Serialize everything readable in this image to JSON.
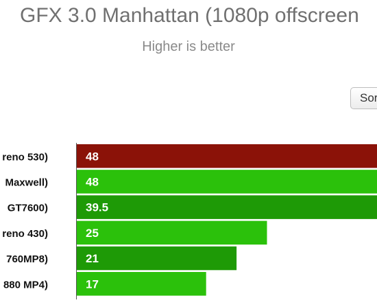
{
  "header": {
    "title": "GFX 3.0 Manhattan (1080p offscreen",
    "subtitle": "Higher is better"
  },
  "controls": {
    "sort_label": "Sort"
  },
  "colors": {
    "highlight": "#8b1208",
    "bar_light": "#2bc10b",
    "bar_dark": "#1e9a06",
    "label_text": "#111111",
    "value_text": "#ffffff"
  },
  "chart_data": {
    "type": "bar",
    "orientation": "horizontal",
    "title": "GFX 3.0 Manhattan (1080p offscreen",
    "subtitle": "Higher is better",
    "categories": [
      "reno 530)",
      "Maxwell)",
      "GT7600)",
      "reno 430)",
      "760MP8)",
      "880 MP4)"
    ],
    "values": [
      48,
      48,
      39.5,
      25,
      21,
      17
    ],
    "value_labels": [
      "48",
      "48",
      "39.5",
      "25",
      "21",
      "17"
    ],
    "bar_colors": [
      "#8b1208",
      "#2bc10b",
      "#1e9a06",
      "#2bc10b",
      "#1e9a06",
      "#2bc10b"
    ],
    "xlim": [
      0,
      44
    ],
    "grid": false
  }
}
